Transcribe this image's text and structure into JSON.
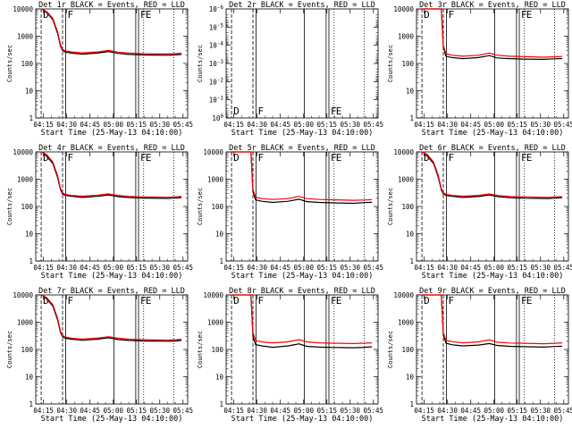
{
  "chart_data": {
    "type": "line",
    "x_tick_labels": [
      "04:15",
      "04:30",
      "04:45",
      "05:00",
      "05:15",
      "05:30",
      "05:45"
    ],
    "x_ticks_min": [
      15,
      30,
      45,
      60,
      75,
      90,
      105
    ],
    "xlim": [
      10,
      108
    ],
    "y_log": true,
    "ylabel": "Counts/sec",
    "xlabel": "Start Time (25-May-13 04:10:00)",
    "marker_lines": [
      {
        "x": 13.5,
        "style": "dashed",
        "label": "D"
      },
      {
        "x": 27.3,
        "style": "dashed"
      },
      {
        "x": 29.3,
        "style": "solid",
        "label": "F"
      },
      {
        "x": 60.5,
        "style": "solid"
      },
      {
        "x": 74.5,
        "style": "solid"
      },
      {
        "x": 76.3,
        "style": "solid",
        "label": "F"
      },
      {
        "x": 79.6,
        "style": "dotted",
        "label": "E"
      },
      {
        "x": 99.0,
        "style": "dotted"
      }
    ],
    "panels": [
      {
        "title": "Det 1r BLACK = Events, RED = LLD",
        "ylim": [
          1,
          10000
        ],
        "y_tick_labels": [
          "1",
          "10",
          "100",
          "1000",
          "10000"
        ],
        "y_tick_values": [
          1,
          10,
          100,
          1000,
          10000
        ],
        "series": [
          {
            "color": "#000000",
            "x": [
              13.5,
              15,
              18,
              21,
              24,
              26,
              27.3,
              29,
              33,
              40,
              50,
              57,
              63,
              70,
              80,
              95,
              99,
              104
            ],
            "y": [
              10000,
              9000,
              6500,
              4000,
              1300,
              420,
              300,
              260,
              240,
              220,
              240,
              275,
              235,
              215,
              205,
              200,
              205,
              215
            ]
          },
          {
            "color": "#ff0000",
            "x": [
              13.5,
              15,
              18,
              21,
              24,
              26,
              27.3,
              29,
              33,
              40,
              50,
              57,
              63,
              70,
              80,
              95,
              99,
              104
            ],
            "y": [
              10000,
              9500,
              7000,
              4500,
              1500,
              480,
              330,
              290,
              265,
              245,
              265,
              300,
              260,
              240,
              228,
              222,
              228,
              238
            ]
          }
        ]
      },
      {
        "title": "Det 2r BLACK = Events, RED = LLD",
        "ylim": [
          1,
          1e-06
        ],
        "y_tick_labels": [
          "10^-6",
          "10^-5",
          "10^-4",
          "10^-3",
          "10^-2",
          "10^-1",
          "10^0"
        ],
        "y_tick_values": [
          1e-06,
          1e-05,
          0.0001,
          0.001,
          0.01,
          0.1,
          1
        ],
        "series": []
      },
      {
        "title": "Det 3r BLACK = Events, RED = LLD",
        "ylim": [
          1,
          10000
        ],
        "y_tick_labels": [
          "1",
          "10",
          "100",
          "1000",
          "10000"
        ],
        "y_tick_values": [
          1,
          10,
          100,
          1000,
          10000
        ],
        "series": [
          {
            "color": "#000000",
            "x": [
              13.5,
              17,
              20,
              23,
              26,
              27.3,
              29,
              33,
              40,
              50,
              57,
              62,
              70,
              80,
              92,
              99,
              104
            ],
            "y": [
              10000,
              10000,
              10000,
              10000,
              10000,
              400,
              185,
              165,
              150,
              165,
              195,
              160,
              150,
              145,
              142,
              148,
              152
            ]
          },
          {
            "color": "#ff0000",
            "x": [
              13.5,
              17,
              20,
              23,
              26,
              27.3,
              29,
              33,
              40,
              50,
              57,
              62,
              70,
              80,
              92,
              99,
              104
            ],
            "y": [
              10000,
              10000,
              10000,
              10000,
              10000,
              450,
              230,
              200,
              185,
              200,
              240,
              200,
              185,
              178,
              170,
              176,
              180
            ]
          }
        ]
      },
      {
        "title": "Det 4r BLACK = Events, RED = LLD",
        "ylim": [
          1,
          10000
        ],
        "y_tick_labels": [
          "1",
          "10",
          "100",
          "1000",
          "10000"
        ],
        "y_tick_values": [
          1,
          10,
          100,
          1000,
          10000
        ],
        "series": [
          {
            "color": "#000000",
            "x": [
              13.5,
              15,
              18,
              21,
              24,
              26,
              27.3,
              29,
              33,
              40,
              50,
              57,
              63,
              70,
              80,
              95,
              99,
              104
            ],
            "y": [
              10000,
              9000,
              6000,
              3800,
              1200,
              400,
              290,
              255,
              235,
              215,
              235,
              265,
              230,
              212,
              203,
              198,
              202,
              212
            ]
          },
          {
            "color": "#ff0000",
            "x": [
              13.5,
              15,
              18,
              21,
              24,
              26,
              27.3,
              29,
              33,
              40,
              50,
              57,
              63,
              70,
              80,
              95,
              99,
              104
            ],
            "y": [
              10000,
              9500,
              6800,
              4300,
              1400,
              450,
              320,
              280,
              255,
              238,
              258,
              290,
              255,
              235,
              225,
              218,
              224,
              232
            ]
          }
        ]
      },
      {
        "title": "Det 5r BLACK = Events, RED = LLD",
        "ylim": [
          1,
          10000
        ],
        "y_tick_labels": [
          "1",
          "10",
          "100",
          "1000",
          "10000"
        ],
        "y_tick_values": [
          1,
          10,
          100,
          1000,
          10000
        ],
        "series": [
          {
            "color": "#000000",
            "x": [
              13.5,
              17,
              20,
              23,
              26,
              27.3,
              29,
              33,
              40,
              50,
              57,
              62,
              70,
              80,
              92,
              99,
              104
            ],
            "y": [
              10000,
              10000,
              10000,
              10000,
              10000,
              350,
              175,
              155,
              140,
              155,
              185,
              150,
              140,
              135,
              130,
              138,
              142
            ]
          },
          {
            "color": "#ff0000",
            "x": [
              13.5,
              17,
              20,
              23,
              26,
              27.3,
              29,
              33,
              40,
              50,
              57,
              62,
              70,
              80,
              92,
              99,
              104
            ],
            "y": [
              10000,
              10000,
              10000,
              10000,
              10000,
              430,
              220,
              195,
              180,
              195,
              235,
              195,
              180,
              175,
              168,
              172,
              178
            ]
          }
        ]
      },
      {
        "title": "Det 6r BLACK = Events, RED = LLD",
        "ylim": [
          1,
          10000
        ],
        "y_tick_labels": [
          "1",
          "10",
          "100",
          "1000",
          "10000"
        ],
        "y_tick_values": [
          1,
          10,
          100,
          1000,
          10000
        ],
        "series": [
          {
            "color": "#000000",
            "x": [
              13.5,
              15,
              18,
              21,
              24,
              26,
              27.3,
              29,
              33,
              40,
              50,
              57,
              63,
              70,
              80,
              95,
              99,
              104
            ],
            "y": [
              10000,
              9000,
              6000,
              3800,
              1200,
              400,
              290,
              255,
              235,
              215,
              232,
              262,
              228,
              210,
              200,
              196,
              200,
              210
            ]
          },
          {
            "color": "#ff0000",
            "x": [
              13.5,
              15,
              18,
              21,
              24,
              26,
              27.3,
              29,
              33,
              40,
              50,
              57,
              63,
              70,
              80,
              95,
              99,
              104
            ],
            "y": [
              10000,
              9500,
              6800,
              4300,
              1400,
              450,
              320,
              280,
              255,
              238,
              255,
              288,
              252,
              232,
              222,
              216,
              222,
              230
            ]
          }
        ]
      },
      {
        "title": "Det 7r BLACK = Events, RED = LLD",
        "ylim": [
          1,
          10000
        ],
        "y_tick_labels": [
          "1",
          "10",
          "100",
          "1000",
          "10000"
        ],
        "y_tick_values": [
          1,
          10,
          100,
          1000,
          10000
        ],
        "series": [
          {
            "color": "#000000",
            "x": [
              13.5,
              15,
              18,
              21,
              24,
              26,
              27.3,
              29,
              33,
              40,
              50,
              57,
              63,
              70,
              80,
              95,
              99,
              104
            ],
            "y": [
              10000,
              9000,
              6200,
              3900,
              1250,
              410,
              295,
              258,
              238,
              218,
              238,
              268,
              232,
              214,
              205,
              200,
              204,
              214
            ]
          },
          {
            "color": "#ff0000",
            "x": [
              13.5,
              15,
              18,
              21,
              24,
              26,
              27.3,
              29,
              33,
              40,
              50,
              57,
              63,
              70,
              80,
              95,
              99,
              104
            ],
            "y": [
              10000,
              9500,
              6900,
              4400,
              1450,
              460,
              325,
              285,
              260,
              242,
              262,
              295,
              258,
              238,
              228,
              220,
              226,
              236
            ]
          }
        ]
      },
      {
        "title": "Det 8r BLACK = Events, RED = LLD",
        "ylim": [
          1,
          10000
        ],
        "y_tick_labels": [
          "1",
          "10",
          "100",
          "1000",
          "10000"
        ],
        "y_tick_values": [
          1,
          10,
          100,
          1000,
          10000
        ],
        "series": [
          {
            "color": "#000000",
            "x": [
              13.5,
              17,
              20,
              23,
              26,
              27.3,
              29,
              33,
              40,
              50,
              57,
              62,
              70,
              80,
              92,
              99,
              104
            ],
            "y": [
              10000,
              10000,
              10000,
              10000,
              10000,
              300,
              150,
              135,
              120,
              135,
              160,
              130,
              122,
              118,
              115,
              120,
              125
            ]
          },
          {
            "color": "#ff0000",
            "x": [
              13.5,
              17,
              20,
              23,
              26,
              27.3,
              29,
              33,
              40,
              50,
              57,
              62,
              70,
              80,
              92,
              99,
              104
            ],
            "y": [
              10000,
              10000,
              10000,
              10000,
              10000,
              420,
              215,
              190,
              175,
              190,
              230,
              190,
              175,
              170,
              165,
              170,
              175
            ]
          }
        ]
      },
      {
        "title": "Det 9r BLACK = Events, RED = LLD",
        "ylim": [
          1,
          10000
        ],
        "y_tick_labels": [
          "1",
          "10",
          "100",
          "1000",
          "10000"
        ],
        "y_tick_values": [
          1,
          10,
          100,
          1000,
          10000
        ],
        "series": [
          {
            "color": "#000000",
            "x": [
              13.5,
              17,
              20,
              23,
              26,
              27.3,
              29,
              33,
              40,
              50,
              57,
              62,
              70,
              80,
              92,
              99,
              104
            ],
            "y": [
              10000,
              10000,
              10000,
              10000,
              10000,
              350,
              170,
              148,
              135,
              145,
              165,
              140,
              130,
              126,
              122,
              128,
              132
            ]
          },
          {
            "color": "#ff0000",
            "x": [
              13.5,
              17,
              20,
              23,
              26,
              27.3,
              29,
              33,
              40,
              50,
              57,
              62,
              70,
              80,
              92,
              99,
              104
            ],
            "y": [
              10000,
              10000,
              10000,
              10000,
              10000,
              420,
              215,
              195,
              175,
              190,
              225,
              185,
              172,
              168,
              162,
              168,
              175
            ]
          }
        ]
      }
    ]
  }
}
